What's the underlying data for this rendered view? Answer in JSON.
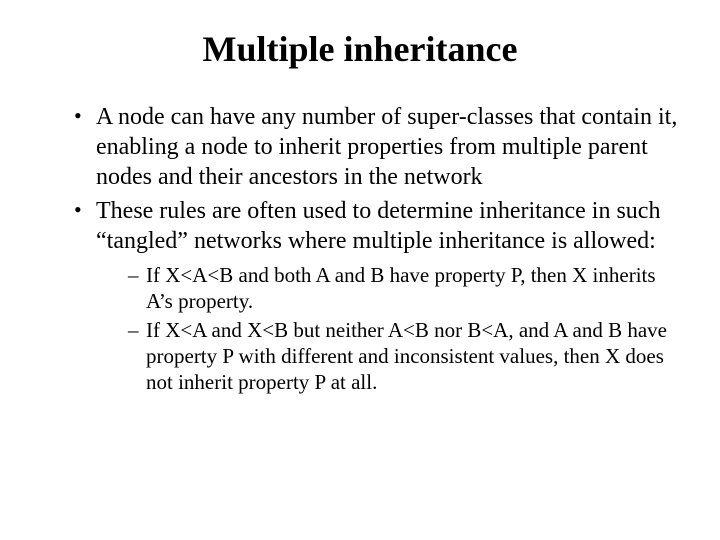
{
  "title": "Multiple inheritance",
  "bullets": {
    "b1": "A node can have any number of super-classes that contain it, enabling a node to inherit properties from multiple parent nodes and their ancestors in the network",
    "b2": "These rules are often used to determine inheritance in such “tangled” networks where multiple inheritance is allowed:",
    "sub": {
      "s1": "If X<A<B and both A and B have property P, then X inherits A’s property.",
      "s2": "If X<A and X<B but neither A<B nor B<A, and A and B have property P with different and inconsistent values, then X does not inherit property P at all."
    }
  },
  "colors": {
    "bg": "#ffffff",
    "text": "#000000"
  },
  "fonts": {
    "title_size_pt": 36,
    "body_size_pt": 24,
    "sub_size_pt": 21,
    "family": "Times New Roman"
  }
}
